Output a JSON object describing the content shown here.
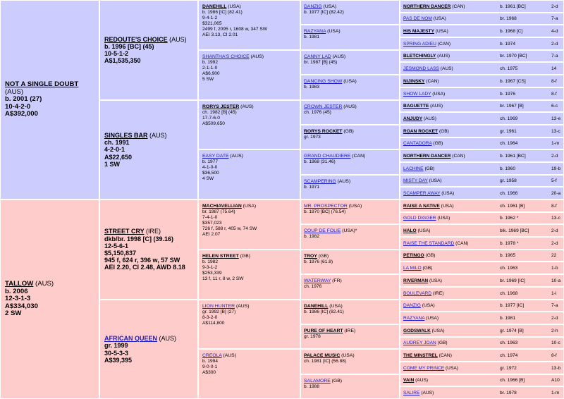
{
  "colors": {
    "sire_side": "#ccccff",
    "dam_side": "#ffcccc",
    "link": "#1a1acc"
  },
  "gen1": [
    {
      "name": "NOT A SINGLE DOUBT",
      "country": "(AUS)",
      "lines": [
        "b. 2001 (27)",
        "10-4-2-0",
        "A$392,000"
      ]
    },
    {
      "name": "TALLOW",
      "country": "(AUS)",
      "lines": [
        "b. 2006",
        "12-3-1-3",
        "A$334,030",
        "2 SW"
      ]
    }
  ],
  "gen2": [
    {
      "name": "REDOUTE'S CHOICE",
      "country": "(AUS)",
      "lines": [
        "b. 1996 [BC] (45)",
        "10-5-1-2",
        "A$1,535,350"
      ]
    },
    {
      "name": "SINGLES BAR",
      "country": "(AUS)",
      "lines": [
        "ch. 1991",
        "4-2-0-1",
        "A$22,650",
        "1 SW"
      ]
    },
    {
      "name": "STREET CRY",
      "country": "(IRE)",
      "lines": [
        "dkb/br. 1998 [C] (39.16)",
        "12-5-6-1",
        "$5,150,837",
        "945 f, 624 r, 396 w, 57 SW",
        "AEI 2.20, CI 2.48, AWD 8.18"
      ]
    },
    {
      "name": "AFRICAN QUEEN",
      "country": "(AUS)",
      "lines": [
        "gr. 1999",
        "30-5-3-3",
        "A$39,395"
      ]
    }
  ],
  "gen3": [
    {
      "name": "DANEHILL",
      "country": "(USA)",
      "lines": [
        "b. 1986 [IC] (82.41)",
        "9-4-1-2",
        "$321,065",
        "2499 f, 2095 r, 1608 w, 347 SW",
        "AEI 3.13, CI 2.01"
      ]
    },
    {
      "name": "SHANTHA'S CHOICE",
      "country": "(AUS)",
      "lines": [
        "b. 1992",
        "2-1-1-0",
        "A$6,900",
        "5 SW"
      ]
    },
    {
      "name": "RORYS JESTER",
      "country": "(AUS)",
      "lines": [
        "ch. 1982 [B] (45)",
        "17-7-6-0",
        "A$509,650"
      ]
    },
    {
      "name": "EASY DATE",
      "country": "(AUS)",
      "lines": [
        "b. 1977",
        "4-1-0-0",
        "$36,500",
        "4 SW"
      ]
    },
    {
      "name": "MACHIAVELLIAN",
      "country": "(USA)",
      "lines": [
        "br. 1987 (75.64)",
        "7-4-1-0",
        "$357,023",
        "726 f, 588 r, 405 w, 74 SW",
        "AEI 2.07"
      ]
    },
    {
      "name": "HELEN STREET",
      "country": "(GB)",
      "lines": [
        "b. 1982",
        "9-3-1-2",
        "$253,339",
        "13 f, 11 r, 8 w, 2 SW"
      ]
    },
    {
      "name": "LION HUNTER",
      "country": "(AUS)",
      "lines": [
        "gr. 1992 [B] (27)",
        "8-3-2-0",
        "A$114,800"
      ]
    },
    {
      "name": "CREOLA",
      "country": "(AUS)",
      "lines": [
        "b. 1994",
        "9-0-0-1",
        "A$300"
      ]
    }
  ],
  "gen4": [
    {
      "name": "DANZIG",
      "country": "(USA)",
      "lines": [
        "b. 1977 [IC] (82.42)"
      ]
    },
    {
      "name": "RAZYANA",
      "country": "(USA)",
      "lines": [
        "b. 1981"
      ]
    },
    {
      "name": "CANNY LAD",
      "country": "(AUS)",
      "lines": [
        "br. 1987 [B] (45)"
      ]
    },
    {
      "name": "DANCING SHOW",
      "country": "(USA)",
      "lines": [
        "b. 1983"
      ]
    },
    {
      "name": "CROWN JESTER",
      "country": "(AUS)",
      "lines": [
        "ch. 1976 (45)"
      ]
    },
    {
      "name": "RORYS ROCKET",
      "country": "(GB)",
      "lines": [
        "gr. 1973"
      ]
    },
    {
      "name": "GRAND CHAUDIERE",
      "country": "(CAN)",
      "lines": [
        "b. 1968 (31.46)"
      ]
    },
    {
      "name": "SCAMPERING",
      "country": "(AUS)",
      "lines": [
        "b. 1971"
      ]
    },
    {
      "name": "MR. PROSPECTOR",
      "country": "(USA)",
      "lines": [
        "b. 1970 [BC] (76.54)"
      ]
    },
    {
      "name": "COUP DE FOLIE",
      "country": "(USA)*",
      "lines": [
        "b. 1982"
      ]
    },
    {
      "name": "TROY",
      "country": "(GB)",
      "lines": [
        "b. 1976 (61.8)"
      ]
    },
    {
      "name": "WATERWAY",
      "country": "(FR)",
      "lines": [
        "ch. 1976"
      ]
    },
    {
      "name": "DANEHILL",
      "country": "(USA)",
      "lines": [
        "b. 1986 [IC] (82.41)"
      ]
    },
    {
      "name": "PURE OF HEART",
      "country": "(IRE)",
      "lines": [
        "gr. 1978"
      ]
    },
    {
      "name": "PALACE MUSIC",
      "country": "(USA)",
      "lines": [
        "ch. 1981 [IC] (56.88)"
      ]
    },
    {
      "name": "SALAMORE",
      "country": "(GB)",
      "lines": [
        "b. 1988"
      ]
    }
  ],
  "gen5": [
    {
      "name": "NORTHERN DANCER",
      "country": "(CAN)",
      "info": "b. 1961 [BC]",
      "family": "2-d"
    },
    {
      "name": "PAS DE NOM",
      "country": "(USA)",
      "info": "br. 1968",
      "family": "7-a"
    },
    {
      "name": "HIS MAJESTY",
      "country": "(USA)",
      "info": "b. 1968 [C]",
      "family": "4-d"
    },
    {
      "name": "SPRING ADIEU",
      "country": "(CAN)",
      "info": "b. 1974",
      "family": "2-d"
    },
    {
      "name": "BLETCHINGLY",
      "country": "(AUS)",
      "info": "br. 1970 [BC]",
      "family": "7-a"
    },
    {
      "name": "JESMOND LASS",
      "country": "(AUS)",
      "info": "ch. 1975",
      "family": "14"
    },
    {
      "name": "NIJINSKY",
      "country": "(CAN)",
      "info": "b. 1967 [CS]",
      "family": "8-f"
    },
    {
      "name": "SHOW LADY",
      "country": "(USA)",
      "info": "b. 1976",
      "family": "8-f"
    },
    {
      "name": "BAGUETTE",
      "country": "(AUS)",
      "info": "br. 1967 [B]",
      "family": "6-c"
    },
    {
      "name": "ANJUDY",
      "country": "(AUS)",
      "info": "ch. 1969",
      "family": "13-e"
    },
    {
      "name": "ROAN ROCKET",
      "country": "(GB)",
      "info": "gr. 1961",
      "family": "13-c"
    },
    {
      "name": "CANTADORA",
      "country": "(GB)",
      "info": "ch. 1964",
      "family": "1-m"
    },
    {
      "name": "NORTHERN DANCER",
      "country": "(CAN)",
      "info": "b. 1961 [BC]",
      "family": "2-d"
    },
    {
      "name": "LACHINE",
      "country": "(GB)",
      "info": "b. 1960",
      "family": "19-b"
    },
    {
      "name": "MISTY DAY",
      "country": "(USA)",
      "info": "gr. 1958",
      "family": "5-f"
    },
    {
      "name": "SCAMPER AWAY",
      "country": "(USA)",
      "info": "ch. 1966",
      "family": "20-a"
    },
    {
      "name": "RAISE A NATIVE",
      "country": "(USA)",
      "info": "ch. 1961 [B]",
      "family": "8-f"
    },
    {
      "name": "GOLD DIGGER",
      "country": "(USA)",
      "info": "b. 1962 *",
      "family": "13-c"
    },
    {
      "name": "HALO",
      "country": "(USA)",
      "info": "blk. 1969 [BC]",
      "family": "2-d"
    },
    {
      "name": "RAISE THE STANDARD",
      "country": "(CAN)",
      "info": "b. 1978 *",
      "family": "2-d"
    },
    {
      "name": "PETINGO",
      "country": "(GB)",
      "info": "b. 1965",
      "family": "22"
    },
    {
      "name": "LA MILO",
      "country": "(GB)",
      "info": "ch. 1963",
      "family": "1-b"
    },
    {
      "name": "RIVERMAN",
      "country": "(USA)",
      "info": "br. 1969 [IC]",
      "family": "10-a"
    },
    {
      "name": "BOULEVARD",
      "country": "(IRE)",
      "info": "ch. 1968",
      "family": "1-l"
    },
    {
      "name": "DANZIG",
      "country": "(USA)",
      "info": "b. 1977 [IC]",
      "family": "7-a"
    },
    {
      "name": "RAZYANA",
      "country": "(USA)",
      "info": "b. 1981",
      "family": "2-d"
    },
    {
      "name": "GODSWALK",
      "country": "(USA)",
      "info": "gr. 1974 [B]",
      "family": "2-h"
    },
    {
      "name": "AUDREY JOAN",
      "country": "(GB)",
      "info": "ch. 1963",
      "family": "10-c"
    },
    {
      "name": "THE MINSTREL",
      "country": "(CAN)",
      "info": "ch. 1974",
      "family": "8-f"
    },
    {
      "name": "COME MY PRINCE",
      "country": "(USA)",
      "info": "gr. 1972",
      "family": "13-b"
    },
    {
      "name": "VAIN",
      "country": "(AUS)",
      "info": "ch. 1966 [B]",
      "family": "A10"
    },
    {
      "name": "SALIRE",
      "country": "(AUS)",
      "info": "br. 1978",
      "family": "1-m"
    }
  ]
}
